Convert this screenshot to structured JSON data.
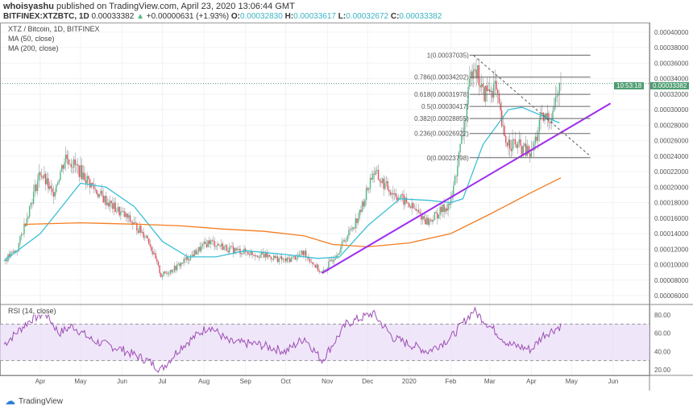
{
  "header": {
    "user": "whoisyashu",
    "published": "published on TradingView.com, April 23, 2020 13:06:44 GMT",
    "symbol": "BITFINEX:XTZBTC, 1D",
    "last": "0.00033382",
    "change": "+0.00000631 (+1.93%)",
    "o_label": "O:",
    "o": "0.00032830",
    "h_label": "H:",
    "h": "0.00033617",
    "l_label": "L:",
    "l": "0.00032672",
    "c_label": "C:",
    "c": "0.00033382"
  },
  "legend": {
    "title": "XTZ / Bitcoin, 1D, BITFINEX",
    "ma50": "MA (50, close)",
    "ma200": "MA (200, close)",
    "rsi": "RSI (14, close)"
  },
  "price_tag": {
    "price": "0.00033382",
    "countdown": "10:53:18"
  },
  "footer": {
    "brand": "TradingView"
  },
  "colors": {
    "up": "#53b987",
    "down": "#eb4d5c",
    "ma50": "#3cc0d6",
    "ma200": "#f57c1f",
    "trend": "#a02cf0",
    "rsi": "#9c4fb5",
    "rsi_band": "#eadcf7"
  },
  "chart_data": {
    "type": "candlestick",
    "start_date": "2019-03-05",
    "y_ticks": [
      "0.00040000",
      "0.00038000",
      "0.00036000",
      "0.00034000",
      "0.00032000",
      "0.00030000",
      "0.00028000",
      "0.00026000",
      "0.00024000",
      "0.00022000",
      "0.00020000",
      "0.00018000",
      "0.00016000",
      "0.00014000",
      "0.00012000",
      "0.00010000",
      "0.00008000",
      "0.00006000"
    ],
    "x_ticks": [
      [
        "Apr",
        "2019-04-01"
      ],
      [
        "May",
        "2019-05-01"
      ],
      [
        "Jun",
        "2019-06-01"
      ],
      [
        "Jul",
        "2019-07-01"
      ],
      [
        "Aug",
        "2019-08-01"
      ],
      [
        "Sep",
        "2019-09-01"
      ],
      [
        "Oct",
        "2019-10-01"
      ],
      [
        "Nov",
        "2019-11-01"
      ],
      [
        "Dec",
        "2019-12-01"
      ],
      [
        "2020",
        "2020-01-01"
      ],
      [
        "Feb",
        "2020-02-01"
      ],
      [
        "Mar",
        "2020-03-01"
      ],
      [
        "Apr",
        "2020-04-01"
      ],
      [
        "May",
        "2020-05-01"
      ],
      [
        "Jun",
        "2020-06-01"
      ]
    ],
    "price_unit": "1e-5 BTC",
    "close_keypoints": [
      [
        "2019-03-05",
        10.5
      ],
      [
        "2019-03-15",
        12
      ],
      [
        "2019-03-25",
        18
      ],
      [
        "2019-04-01",
        22
      ],
      [
        "2019-04-10",
        19
      ],
      [
        "2019-04-20",
        24
      ],
      [
        "2019-05-01",
        22
      ],
      [
        "2019-05-15",
        19
      ],
      [
        "2019-05-25",
        17.5
      ],
      [
        "2019-06-05",
        16
      ],
      [
        "2019-06-20",
        13.5
      ],
      [
        "2019-06-30",
        8.6
      ],
      [
        "2019-07-10",
        9.5
      ],
      [
        "2019-07-25",
        11.5
      ],
      [
        "2019-08-05",
        13
      ],
      [
        "2019-08-20",
        12
      ],
      [
        "2019-09-05",
        11.5
      ],
      [
        "2019-09-20",
        11
      ],
      [
        "2019-10-01",
        10.5
      ],
      [
        "2019-10-15",
        11.5
      ],
      [
        "2019-10-28",
        8.8
      ],
      [
        "2019-11-10",
        12
      ],
      [
        "2019-11-25",
        16.5
      ],
      [
        "2019-12-05",
        22
      ],
      [
        "2019-12-15",
        20
      ],
      [
        "2020-01-01",
        17.7
      ],
      [
        "2020-01-15",
        15.5
      ],
      [
        "2020-02-01",
        18
      ],
      [
        "2020-02-10",
        27
      ],
      [
        "2020-02-18",
        36.5
      ],
      [
        "2020-02-25",
        32
      ],
      [
        "2020-03-05",
        33
      ],
      [
        "2020-03-12",
        26
      ],
      [
        "2020-03-20",
        25.5
      ],
      [
        "2020-04-01",
        24.2
      ],
      [
        "2020-04-08",
        28.5
      ],
      [
        "2020-04-15",
        29
      ],
      [
        "2020-04-23",
        33.4
      ]
    ],
    "ma50": [
      [
        "2019-03-05",
        10.5
      ],
      [
        "2019-04-01",
        14
      ],
      [
        "2019-05-01",
        20.5
      ],
      [
        "2019-05-20",
        20
      ],
      [
        "2019-06-10",
        17.5
      ],
      [
        "2019-07-01",
        13
      ],
      [
        "2019-07-20",
        11
      ],
      [
        "2019-08-10",
        11
      ],
      [
        "2019-09-01",
        11.8
      ],
      [
        "2019-10-01",
        11.3
      ],
      [
        "2019-10-25",
        10.8
      ],
      [
        "2019-11-10",
        11
      ],
      [
        "2019-12-01",
        15
      ],
      [
        "2019-12-25",
        18.5
      ],
      [
        "2020-01-15",
        18.3
      ],
      [
        "2020-02-01",
        18
      ],
      [
        "2020-02-10",
        18.5
      ],
      [
        "2020-02-25",
        25.5
      ],
      [
        "2020-03-15",
        30
      ],
      [
        "2020-03-25",
        30.3
      ],
      [
        "2020-04-05",
        29.5
      ],
      [
        "2020-04-22",
        28.3
      ]
    ],
    "ma200": [
      [
        "2019-03-20",
        15.2
      ],
      [
        "2019-05-01",
        15.4
      ],
      [
        "2019-06-15",
        15.2
      ],
      [
        "2019-07-15",
        15
      ],
      [
        "2019-08-15",
        14.6
      ],
      [
        "2019-09-15",
        14.3
      ],
      [
        "2019-10-15",
        13.7
      ],
      [
        "2019-11-05",
        12.6
      ],
      [
        "2019-12-01",
        12.3
      ],
      [
        "2020-01-01",
        12.8
      ],
      [
        "2020-02-01",
        14
      ],
      [
        "2020-03-01",
        16.5
      ],
      [
        "2020-04-01",
        19.3
      ],
      [
        "2020-04-23",
        21.2
      ]
    ],
    "trendline": [
      [
        "2019-10-28",
        8.9
      ],
      [
        "2020-05-30",
        30.8
      ]
    ],
    "downtrend": [
      [
        "2020-02-18",
        37
      ],
      [
        "2020-05-15",
        24
      ]
    ],
    "fib": {
      "start": "2020-02-15",
      "end": "2020-05-15",
      "levels": [
        [
          "1(0.00037035)",
          37.035
        ],
        [
          "0.786(0.00034202)",
          34.202
        ],
        [
          "0.618(0.00031978)",
          31.978
        ],
        [
          "0.5(0.00030417)",
          30.417
        ],
        [
          "0.382(0.00028855)",
          28.855
        ],
        [
          "0.236(0.00026922)",
          26.922
        ],
        [
          "0(0.00023798)",
          23.798
        ]
      ]
    },
    "rsi": {
      "ticks": [
        "80.00",
        "60.00",
        "40.00",
        "20.00"
      ],
      "band": [
        30,
        70
      ],
      "keypoints": [
        [
          "2019-03-05",
          48
        ],
        [
          "2019-03-25",
          75
        ],
        [
          "2019-04-05",
          82
        ],
        [
          "2019-04-15",
          60
        ],
        [
          "2019-04-25",
          68
        ],
        [
          "2019-05-10",
          52
        ],
        [
          "2019-06-01",
          42
        ],
        [
          "2019-06-20",
          30
        ],
        [
          "2019-06-30",
          20
        ],
        [
          "2019-07-15",
          45
        ],
        [
          "2019-08-05",
          68
        ],
        [
          "2019-08-20",
          50
        ],
        [
          "2019-09-10",
          48
        ],
        [
          "2019-10-01",
          40
        ],
        [
          "2019-10-15",
          55
        ],
        [
          "2019-10-28",
          30
        ],
        [
          "2019-11-15",
          70
        ],
        [
          "2019-12-05",
          82
        ],
        [
          "2019-12-20",
          55
        ],
        [
          "2020-01-15",
          40
        ],
        [
          "2020-02-01",
          55
        ],
        [
          "2020-02-18",
          85
        ],
        [
          "2020-03-01",
          68
        ],
        [
          "2020-03-15",
          48
        ],
        [
          "2020-04-01",
          42
        ],
        [
          "2020-04-10",
          58
        ],
        [
          "2020-04-23",
          68
        ]
      ]
    }
  }
}
